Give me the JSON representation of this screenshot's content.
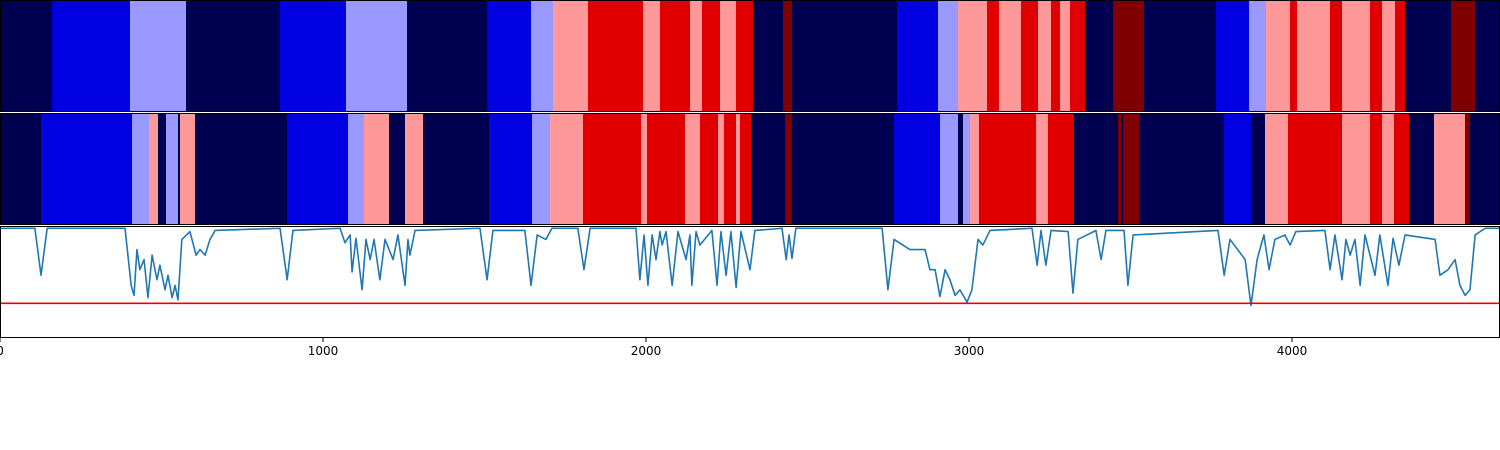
{
  "chart_data": {
    "type": "segment-tracks",
    "xlim": [
      0,
      4644
    ],
    "xticks": [
      0,
      1000,
      2000,
      3000,
      4000
    ],
    "palette": [
      "#000050",
      "#0000e0",
      "#9999ff",
      "#ff9999",
      "#e00000",
      "#800000"
    ],
    "tracks": [
      {
        "edges": [
          0,
          161,
          402,
          576,
          867,
          1071,
          1260,
          1508,
          1644,
          1712,
          1820,
          1991,
          2043,
          2136,
          2173,
          2229,
          2279,
          2331,
          2424,
          2452,
          2777,
          2904,
          2966,
          3056,
          3093,
          3161,
          3214,
          3254,
          3282,
          3313,
          3359,
          3446,
          3542,
          3765,
          3867,
          3920,
          3994,
          4015,
          4118,
          4155,
          4241,
          4279,
          4319,
          4350,
          4492,
          4567,
          4644
        ],
        "classes": [
          0,
          1,
          2,
          0,
          1,
          2,
          0,
          1,
          2,
          3,
          4,
          3,
          4,
          3,
          4,
          3,
          4,
          0,
          5,
          0,
          1,
          2,
          3,
          4,
          3,
          4,
          3,
          4,
          3,
          4,
          0,
          5,
          0,
          1,
          2,
          3,
          4,
          3,
          4,
          3,
          4,
          3,
          4,
          0,
          5,
          0
        ]
      },
      {
        "edges": [
          0,
          127,
          409,
          461,
          489,
          514,
          551,
          557,
          604,
          889,
          1077,
          1127,
          1204,
          1254,
          1310,
          1514,
          1647,
          1703,
          1805,
          1985,
          2003,
          2121,
          2167,
          2223,
          2241,
          2279,
          2291,
          2325,
          2430,
          2452,
          2768,
          2910,
          2966,
          2981,
          3003,
          3031,
          3207,
          3245,
          3325,
          3461,
          3471,
          3477,
          3529,
          3790,
          3876,
          3916,
          3988,
          4155,
          4241,
          4279,
          4316,
          4362,
          4440,
          4536,
          4551,
          4644
        ],
        "classes": [
          0,
          1,
          2,
          3,
          0,
          2,
          0,
          3,
          0,
          1,
          2,
          3,
          0,
          3,
          0,
          1,
          2,
          3,
          4,
          3,
          4,
          3,
          4,
          3,
          4,
          3,
          4,
          0,
          5,
          0,
          1,
          2,
          0,
          2,
          3,
          4,
          3,
          4,
          0,
          5,
          0,
          5,
          0,
          1,
          0,
          3,
          4,
          3,
          4,
          3,
          4,
          0,
          3,
          5,
          0
        ]
      }
    ],
    "ylim": [
      0,
      1
    ],
    "line": {
      "color": "#1f77b4",
      "x": [
        0,
        108,
        127,
        146,
        387,
        406,
        415,
        424,
        433,
        446,
        458,
        471,
        486,
        495,
        511,
        520,
        533,
        542,
        551,
        563,
        588,
        607,
        619,
        635,
        650,
        666,
        867,
        889,
        907,
        1053,
        1068,
        1084,
        1090,
        1102,
        1121,
        1133,
        1146,
        1158,
        1176,
        1192,
        1217,
        1232,
        1254,
        1263,
        1269,
        1285,
        1486,
        1508,
        1526,
        1625,
        1644,
        1663,
        1690,
        1709,
        1789,
        1808,
        1827,
        1969,
        1981,
        1994,
        2006,
        2019,
        2031,
        2043,
        2050,
        2062,
        2081,
        2099,
        2124,
        2136,
        2142,
        2155,
        2167,
        2204,
        2220,
        2232,
        2248,
        2263,
        2279,
        2294,
        2322,
        2337,
        2421,
        2434,
        2443,
        2452,
        2464,
        2731,
        2749,
        2768,
        2817,
        2864,
        2879,
        2895,
        2910,
        2926,
        2941,
        2957,
        2972,
        2994,
        3009,
        3028,
        3043,
        3065,
        3195,
        3211,
        3223,
        3238,
        3254,
        3307,
        3322,
        3337,
        3393,
        3409,
        3424,
        3480,
        3492,
        3508,
        3771,
        3790,
        3808,
        3855,
        3873,
        3892,
        3913,
        3929,
        3947,
        3978,
        3994,
        4012,
        4102,
        4118,
        4133,
        4155,
        4167,
        4180,
        4195,
        4211,
        4226,
        4257,
        4272,
        4297,
        4313,
        4331,
        4350,
        4443,
        4458,
        4483,
        4505,
        4520,
        4536,
        4551,
        4567,
        4598,
        4644
      ],
      "values": [
        0.98,
        0.98,
        0.56,
        0.98,
        0.98,
        0.47,
        0.38,
        0.79,
        0.61,
        0.7,
        0.36,
        0.74,
        0.52,
        0.65,
        0.43,
        0.56,
        0.36,
        0.47,
        0.34,
        0.88,
        0.95,
        0.74,
        0.79,
        0.74,
        0.88,
        0.96,
        0.98,
        0.52,
        0.96,
        0.98,
        0.85,
        0.92,
        0.59,
        0.89,
        0.43,
        0.88,
        0.7,
        0.88,
        0.52,
        0.88,
        0.7,
        0.92,
        0.47,
        0.88,
        0.74,
        0.96,
        0.98,
        0.52,
        0.96,
        0.96,
        0.47,
        0.92,
        0.88,
        0.98,
        0.98,
        0.61,
        0.98,
        0.98,
        0.52,
        0.92,
        0.47,
        0.92,
        0.7,
        0.95,
        0.83,
        0.95,
        0.47,
        0.95,
        0.7,
        0.92,
        0.47,
        0.95,
        0.83,
        0.96,
        0.47,
        0.95,
        0.56,
        0.95,
        0.45,
        0.95,
        0.61,
        0.96,
        0.98,
        0.7,
        0.92,
        0.71,
        0.98,
        0.98,
        0.43,
        0.88,
        0.79,
        0.79,
        0.61,
        0.61,
        0.37,
        0.61,
        0.52,
        0.38,
        0.43,
        0.32,
        0.43,
        0.88,
        0.83,
        0.96,
        0.98,
        0.65,
        0.96,
        0.65,
        0.96,
        0.95,
        0.4,
        0.88,
        0.96,
        0.7,
        0.96,
        0.96,
        0.47,
        0.92,
        0.96,
        0.56,
        0.88,
        0.7,
        0.29,
        0.7,
        0.92,
        0.61,
        0.88,
        0.92,
        0.83,
        0.95,
        0.96,
        0.61,
        0.92,
        0.52,
        0.88,
        0.74,
        0.88,
        0.47,
        0.92,
        0.56,
        0.92,
        0.47,
        0.89,
        0.65,
        0.92,
        0.88,
        0.56,
        0.61,
        0.7,
        0.47,
        0.38,
        0.43,
        0.92,
        0.98,
        0.98
      ]
    },
    "threshold": {
      "value": 0.31,
      "color": "#ee0000"
    }
  }
}
